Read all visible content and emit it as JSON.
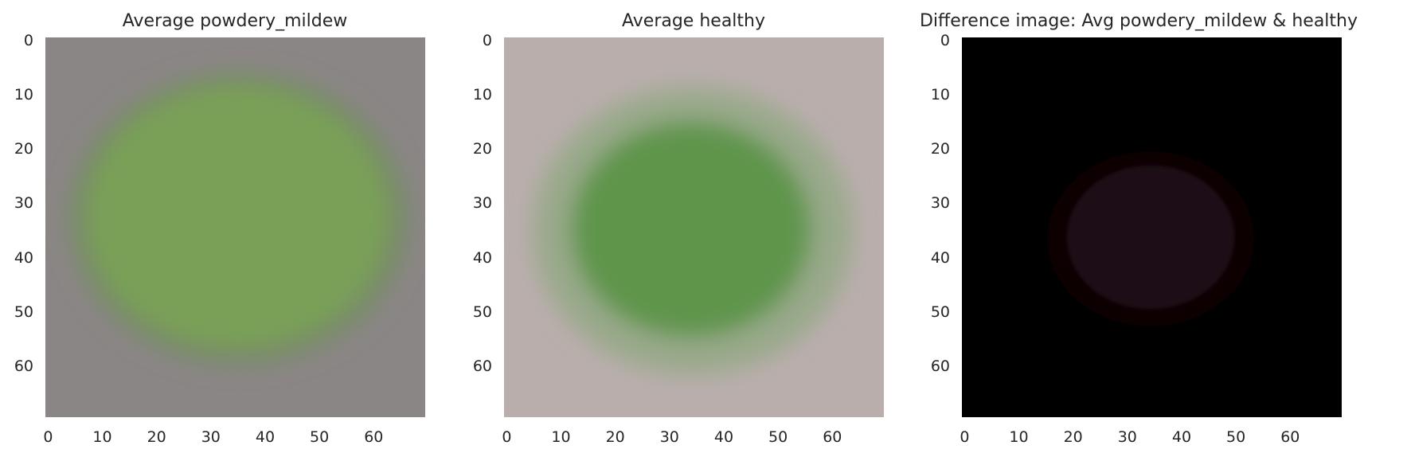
{
  "chart_data": [
    {
      "type": "heatmap",
      "title": "Average powdery_mildew",
      "x_ticks": [
        "0",
        "10",
        "20",
        "30",
        "40",
        "50",
        "60"
      ],
      "y_ticks": [
        "0",
        "10",
        "20",
        "30",
        "40",
        "50",
        "60"
      ],
      "xlim": [
        -0.5,
        69.5
      ],
      "ylim": [
        69.5,
        -0.5
      ],
      "grid": false,
      "colors": {
        "background": "#8b8686",
        "leaf": "#79a056",
        "leaf_edge": "#6d8e58"
      }
    },
    {
      "type": "heatmap",
      "title": "Average healthy",
      "x_ticks": [
        "0",
        "10",
        "20",
        "30",
        "40",
        "50",
        "60"
      ],
      "y_ticks": [
        "0",
        "10",
        "20",
        "30",
        "40",
        "50",
        "60"
      ],
      "xlim": [
        -0.5,
        69.5
      ],
      "ylim": [
        69.5,
        -0.5
      ],
      "grid": false,
      "colors": {
        "background": "#b9aeac",
        "leaf": "#5e944b",
        "leaf_edge": "#8aa67c"
      }
    },
    {
      "type": "heatmap",
      "title": "Difference image: Avg powdery_mildew & healthy",
      "x_ticks": [
        "0",
        "10",
        "20",
        "30",
        "40",
        "50",
        "60"
      ],
      "y_ticks": [
        "0",
        "10",
        "20",
        "30",
        "40",
        "50",
        "60"
      ],
      "xlim": [
        -0.5,
        69.5
      ],
      "ylim": [
        69.5,
        -0.5
      ],
      "grid": false,
      "colors": {
        "background": "#000000",
        "leaf": "#1a0d14",
        "leaf_edge": "#070306"
      }
    }
  ]
}
